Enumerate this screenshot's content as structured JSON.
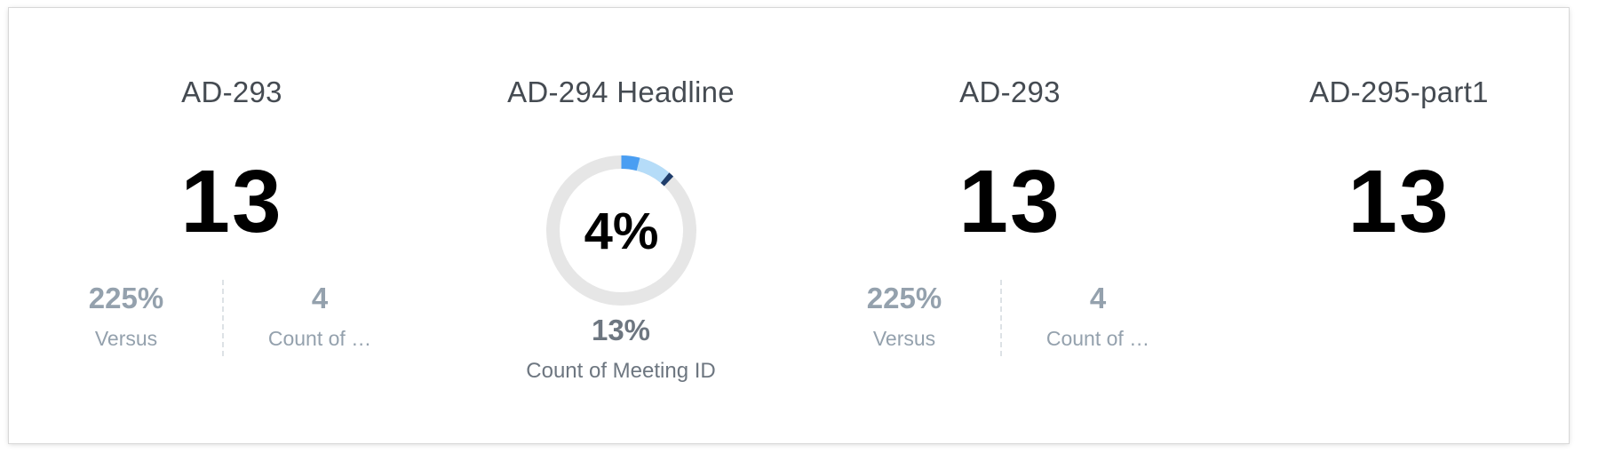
{
  "widgets": [
    {
      "title": "AD-293",
      "value": "13",
      "secondary": [
        {
          "value": "225%",
          "label": "Versus"
        },
        {
          "value": "4",
          "label": "Count of …"
        }
      ]
    },
    {
      "title": "AD-294 Headline",
      "donut": {
        "value_label": "4%",
        "percent": 4,
        "ring_bg_color": "#e6e6e6",
        "segments": [
          {
            "fraction": 0.04,
            "color": "#4a9ef2"
          },
          {
            "fraction": 0.07,
            "color": "#b5dcf8"
          },
          {
            "fraction": 0.012,
            "color": "#1f3d6b"
          }
        ]
      },
      "secondary_value": "13%",
      "secondary_label": "Count of Meeting ID"
    },
    {
      "title": "AD-293",
      "value": "13",
      "secondary": [
        {
          "value": "225%",
          "label": "Versus"
        },
        {
          "value": "4",
          "label": "Count of …"
        }
      ]
    },
    {
      "title": "AD-295-part1",
      "value": "13"
    }
  ]
}
